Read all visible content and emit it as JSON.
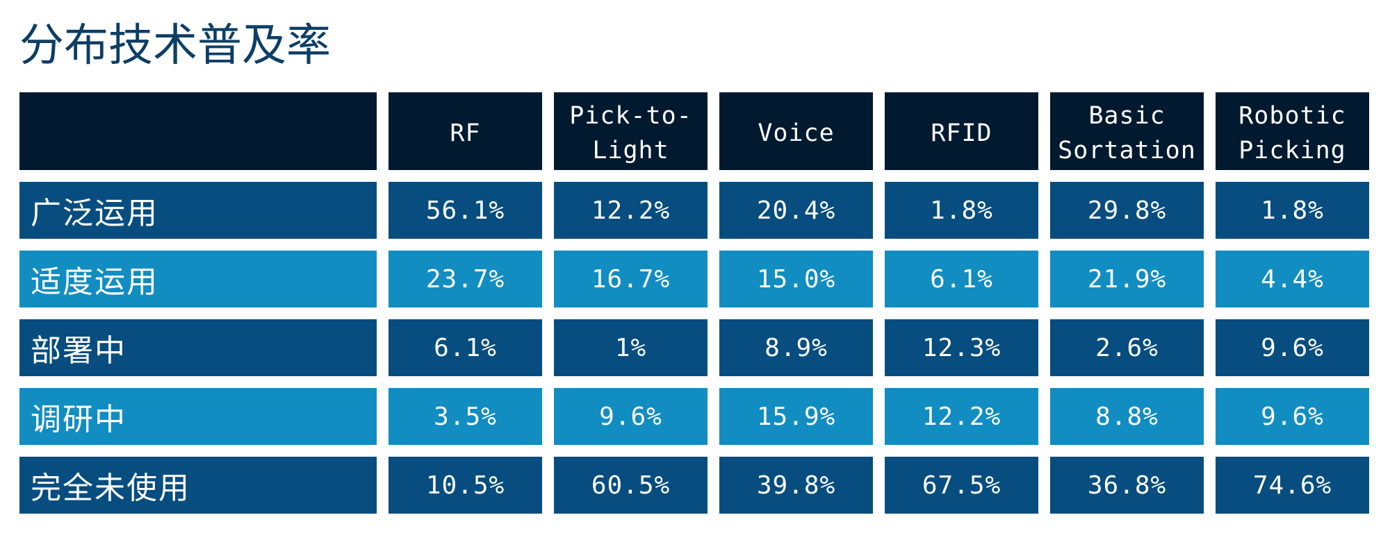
{
  "title": "分布技术普及率",
  "table": {
    "corner": "",
    "columns": [
      "RF",
      "Pick-to-\nLight",
      "Voice",
      "RFID",
      "Basic\nSortation",
      "Robotic\nPicking"
    ],
    "rows": [
      {
        "label": "广泛运用",
        "values": [
          "56.1%",
          "12.2%",
          "20.4%",
          "1.8%",
          "29.8%",
          "1.8%"
        ],
        "shade": "dark"
      },
      {
        "label": "适度运用",
        "values": [
          "23.7%",
          "16.7%",
          "15.0%",
          "6.1%",
          "21.9%",
          "4.4%"
        ],
        "shade": "light"
      },
      {
        "label": "部署中",
        "values": [
          "6.1%",
          "1%",
          "8.9%",
          "12.3%",
          "2.6%",
          "9.6%"
        ],
        "shade": "dark"
      },
      {
        "label": "调研中",
        "values": [
          "3.5%",
          "9.6%",
          "15.9%",
          "12.2%",
          "8.8%",
          "9.6%"
        ],
        "shade": "light"
      },
      {
        "label": "完全未使用",
        "values": [
          "10.5%",
          "60.5%",
          "39.8%",
          "67.5%",
          "36.8%",
          "74.6%"
        ],
        "shade": "dark"
      }
    ]
  },
  "colors": {
    "title": "#0d3e66",
    "header_bg": "#011a30",
    "row_dark": "#074d7f",
    "row_light": "#118dc2",
    "text": "#ffffff"
  }
}
